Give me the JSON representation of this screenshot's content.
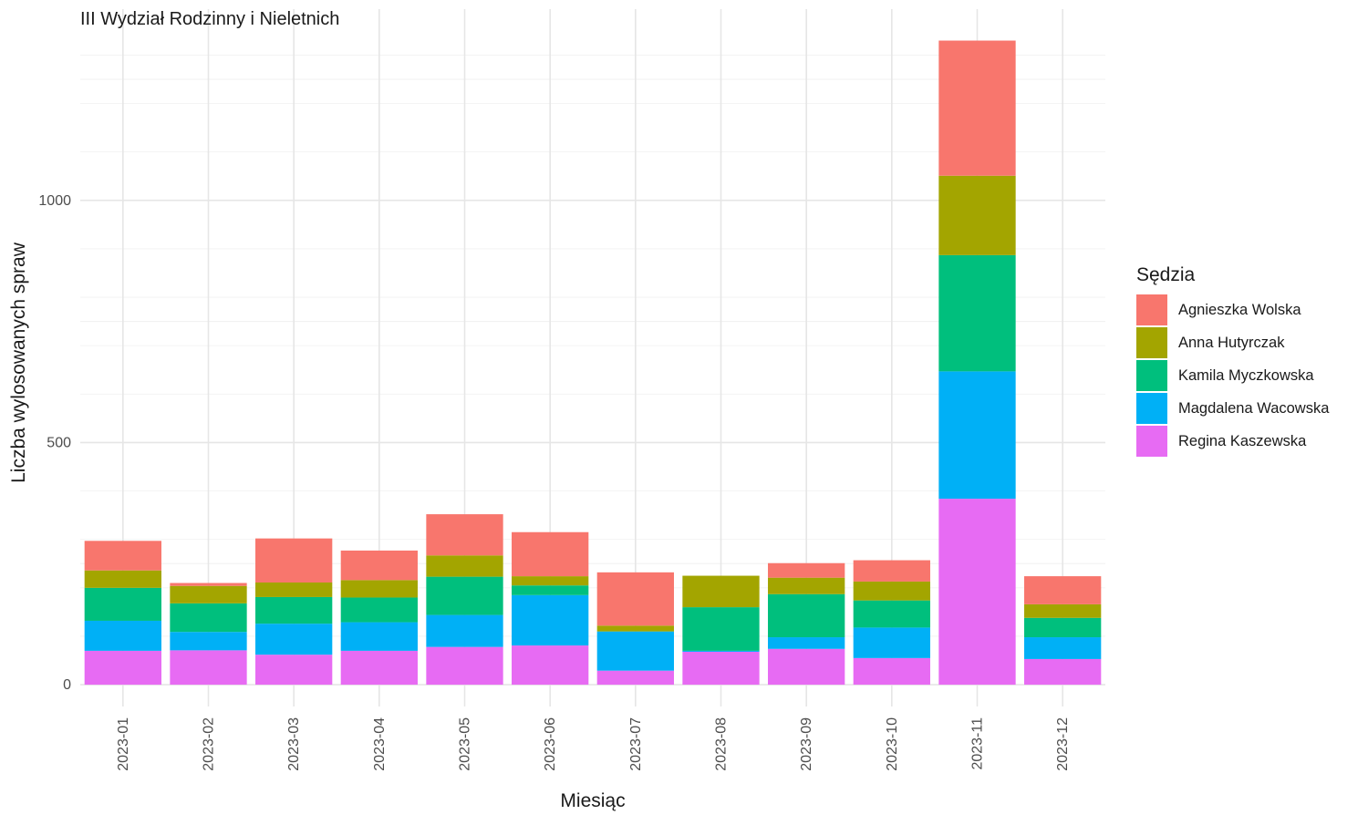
{
  "chart_data": {
    "type": "bar",
    "stacked": true,
    "title": "III Wydział Rodzinny i Nieletnich",
    "xlabel": "Miesiąc",
    "ylabel": "Liczba wylosowanych spraw",
    "ylim": [
      -45,
      1395
    ],
    "yticks": [
      0,
      500,
      1000
    ],
    "categories": [
      "2023-01",
      "2023-02",
      "2023-03",
      "2023-04",
      "2023-05",
      "2023-06",
      "2023-07",
      "2023-08",
      "2023-09",
      "2023-10",
      "2023-11",
      "2023-12"
    ],
    "series": [
      {
        "name": "Regina Kaszewska",
        "color": "#E76BF3",
        "values": [
          70,
          71,
          62,
          70,
          78,
          81,
          29,
          68,
          74,
          55,
          384,
          53
        ]
      },
      {
        "name": "Magdalena Wacowska",
        "color": "#00B0F6",
        "values": [
          62,
          38,
          64,
          59,
          66,
          104,
          81,
          2,
          24,
          63,
          263,
          45
        ]
      },
      {
        "name": "Kamila Myczkowska",
        "color": "#00BF7D",
        "values": [
          68,
          59,
          55,
          51,
          79,
          20,
          0,
          90,
          89,
          56,
          240,
          40
        ]
      },
      {
        "name": "Anna Hutyrczak",
        "color": "#A3A500",
        "values": [
          36,
          36,
          30,
          36,
          44,
          19,
          12,
          65,
          34,
          39,
          164,
          28
        ]
      },
      {
        "name": "Agnieszka Wolska",
        "color": "#F8766D",
        "values": [
          61,
          6,
          91,
          61,
          85,
          91,
          110,
          0,
          30,
          44,
          279,
          58
        ]
      }
    ],
    "grid": true,
    "legend": {
      "title": "Sędzia",
      "position": "right"
    }
  }
}
